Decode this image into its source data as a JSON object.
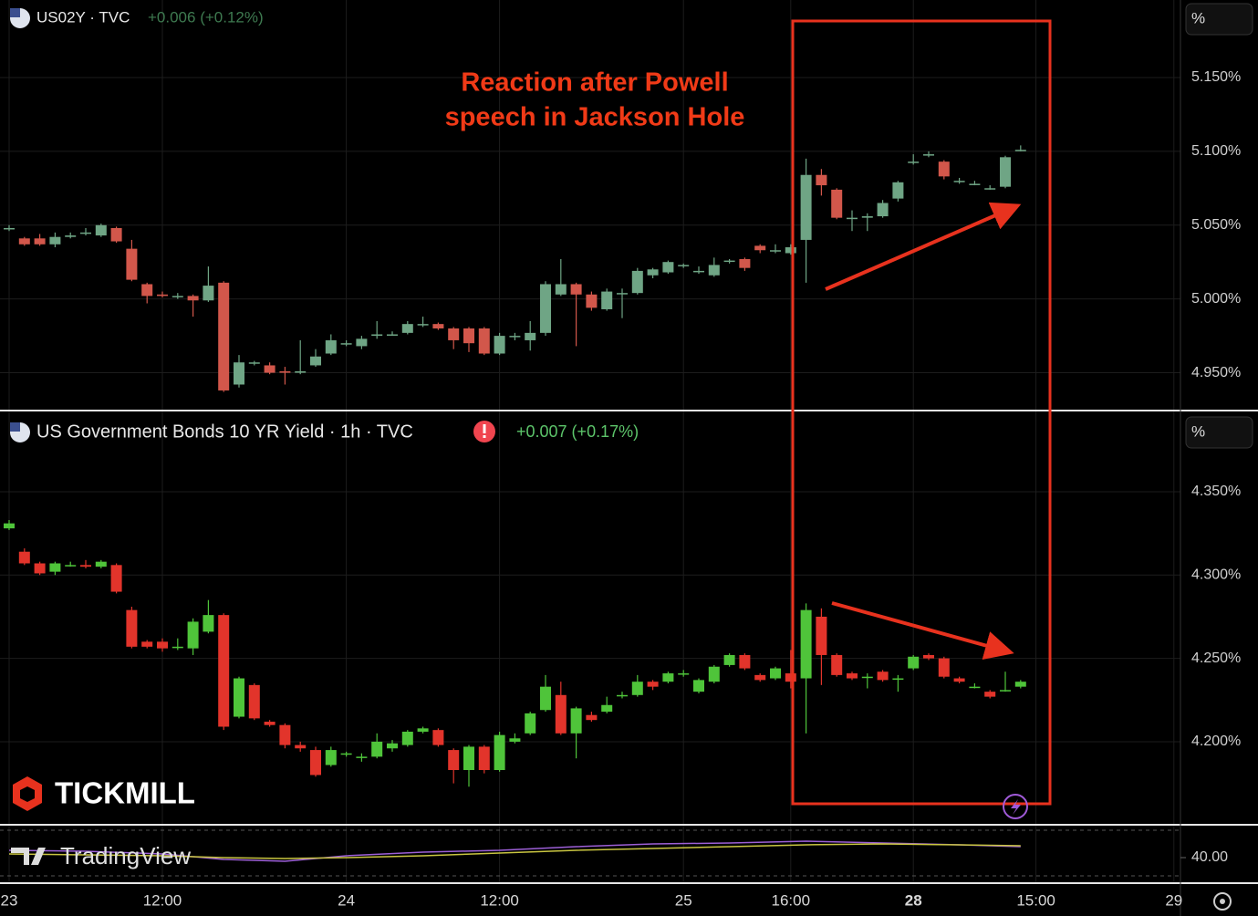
{
  "chart_data": [
    {
      "type": "candlestick",
      "title": "US02Y · TVC",
      "change": "+0.006 (+0.12%)",
      "unit": "%",
      "up_color": "#6fa585",
      "down_color": "#d2574b",
      "change_color": "#3e7a50",
      "open": [
        5.048,
        5.041,
        5.041,
        5.037,
        5.042,
        5.045,
        5.043,
        5.048,
        5.034,
        5.01,
        5.003,
        5.002,
        5.002,
        4.999,
        5.011,
        4.942,
        4.957,
        4.955,
        4.951,
        4.95,
        4.955,
        4.963,
        4.97,
        4.968,
        4.975,
        4.976,
        4.977,
        4.983,
        4.983,
        4.98,
        4.98,
        4.98,
        4.963,
        4.975,
        4.972,
        4.977,
        5.003,
        5.01,
        5.003,
        4.993,
        5.004,
        5.004,
        5.016,
        5.018,
        5.023,
        5.019,
        5.016,
        5.026,
        5.027,
        5.036,
        5.033,
        5.031,
        5.04,
        5.084,
        5.074,
        5.055,
        5.055,
        5.056,
        5.068,
        5.093,
        5.098,
        5.093,
        5.08,
        5.078,
        5.075,
        5.076,
        5.101
      ],
      "high": [
        5.05,
        5.042,
        5.044,
        5.045,
        5.045,
        5.048,
        5.051,
        5.049,
        5.04,
        5.011,
        5.005,
        5.004,
        5.003,
        5.022,
        5.012,
        4.962,
        4.958,
        4.957,
        4.954,
        4.972,
        4.966,
        4.976,
        4.972,
        4.975,
        4.985,
        4.978,
        4.985,
        4.988,
        4.984,
        4.981,
        4.981,
        4.981,
        4.977,
        4.977,
        4.985,
        5.012,
        5.027,
        5.011,
        5.005,
        5.007,
        5.007,
        5.021,
        5.021,
        5.026,
        5.024,
        5.022,
        5.028,
        5.027,
        5.028,
        5.037,
        5.037,
        5.037,
        5.095,
        5.088,
        5.075,
        5.06,
        5.058,
        5.067,
        5.08,
        5.098,
        5.1,
        5.094,
        5.082,
        5.08,
        5.077,
        5.097,
        5.104
      ],
      "low": [
        5.046,
        5.036,
        5.036,
        5.035,
        5.041,
        5.043,
        5.042,
        5.038,
        5.012,
        4.997,
        5.001,
        5.0,
        4.988,
        4.998,
        4.937,
        4.94,
        4.955,
        4.949,
        4.942,
        4.949,
        4.954,
        4.962,
        4.968,
        4.966,
        4.973,
        4.975,
        4.976,
        4.981,
        4.979,
        4.966,
        4.964,
        4.962,
        4.962,
        4.972,
        4.965,
        4.975,
        5.002,
        4.968,
        4.992,
        4.992,
        4.987,
        5.003,
        5.014,
        5.017,
        5.021,
        5.017,
        5.015,
        5.024,
        5.019,
        5.031,
        5.031,
        5.03,
        5.011,
        5.07,
        5.054,
        5.046,
        5.046,
        5.055,
        5.066,
        5.091,
        5.096,
        5.081,
        5.078,
        5.077,
        5.074,
        5.075,
        5.1
      ],
      "close": [
        5.048,
        5.037,
        5.037,
        5.042,
        5.043,
        5.045,
        5.05,
        5.039,
        5.013,
        5.002,
        5.002,
        5.002,
        4.999,
        5.009,
        4.938,
        4.957,
        4.957,
        4.95,
        4.95,
        4.951,
        4.961,
        4.972,
        4.97,
        4.973,
        4.976,
        4.976,
        4.983,
        4.983,
        4.98,
        4.972,
        4.97,
        4.963,
        4.975,
        4.975,
        4.977,
        5.01,
        5.01,
        5.003,
        4.994,
        5.005,
        5.004,
        5.019,
        5.02,
        5.025,
        5.023,
        5.019,
        5.023,
        5.026,
        5.021,
        5.033,
        5.033,
        5.035,
        5.084,
        5.077,
        5.055,
        5.055,
        5.056,
        5.065,
        5.079,
        5.093,
        5.098,
        5.083,
        5.08,
        5.078,
        5.075,
        5.096,
        5.101
      ],
      "ylim": [
        4.925,
        5.2025
      ],
      "yticks": [
        {
          "value": 4.95,
          "label": "4.950%"
        },
        {
          "value": 5.0,
          "label": "5.000%"
        },
        {
          "value": 5.05,
          "label": "5.050%"
        },
        {
          "value": 5.1,
          "label": "5.100%"
        },
        {
          "value": 5.15,
          "label": "5.150%"
        }
      ],
      "grid": true
    },
    {
      "type": "candlestick",
      "title": "US Government Bonds 10 YR Yield · 1h · TVC",
      "change": "+0.007 (+0.17%)",
      "unit": "%",
      "up_color": "#4fc43a",
      "down_color": "#e2342b",
      "change_color": "#5cc46a",
      "categories": [
        "23",
        null,
        null,
        null,
        null,
        null,
        null,
        null,
        null,
        null,
        "12:00",
        null,
        null,
        null,
        null,
        null,
        null,
        null,
        null,
        null,
        null,
        null,
        "24",
        null,
        null,
        null,
        null,
        null,
        null,
        null,
        null,
        null,
        "12:00",
        null,
        null,
        null,
        null,
        null,
        null,
        null,
        null,
        null,
        null,
        null,
        "25",
        null,
        null,
        null,
        null,
        null,
        null,
        "16:00",
        null,
        null,
        null,
        null,
        null,
        null,
        null,
        "28",
        null,
        null,
        null,
        null,
        null,
        null,
        null,
        "15:00",
        null,
        null,
        null,
        null,
        null,
        null,
        null,
        null,
        "29"
      ],
      "open": [
        4.328,
        4.314,
        4.307,
        4.302,
        4.306,
        4.306,
        4.305,
        4.306,
        4.279,
        4.26,
        4.26,
        4.257,
        4.256,
        4.266,
        4.276,
        4.215,
        4.234,
        4.212,
        4.21,
        4.198,
        4.195,
        4.186,
        4.193,
        4.191,
        4.191,
        4.196,
        4.198,
        4.206,
        4.207,
        4.195,
        4.183,
        4.197,
        4.183,
        4.2,
        4.205,
        4.219,
        4.228,
        4.205,
        4.216,
        4.218,
        4.228,
        4.228,
        4.236,
        4.236,
        4.241,
        4.23,
        4.236,
        4.246,
        4.252,
        4.24,
        4.238,
        4.241,
        4.238,
        4.275,
        4.252,
        4.241,
        4.239,
        4.242,
        4.238,
        4.244,
        4.252,
        4.25,
        4.238,
        4.233,
        4.23,
        4.231,
        4.233,
        null,
        null,
        null,
        null,
        null,
        null,
        null,
        null,
        null,
        null
      ],
      "high": [
        4.333,
        4.316,
        4.308,
        4.308,
        4.308,
        4.309,
        4.309,
        4.307,
        4.281,
        4.261,
        4.262,
        4.262,
        4.274,
        4.285,
        4.277,
        4.239,
        4.235,
        4.213,
        4.211,
        4.2,
        4.197,
        4.197,
        4.194,
        4.193,
        4.205,
        4.201,
        4.207,
        4.209,
        4.208,
        4.196,
        4.198,
        4.198,
        4.206,
        4.205,
        4.218,
        4.24,
        4.236,
        4.221,
        4.218,
        4.227,
        4.23,
        4.24,
        4.237,
        4.242,
        4.243,
        4.238,
        4.246,
        4.253,
        4.253,
        4.241,
        4.245,
        4.255,
        4.283,
        4.28,
        4.253,
        4.242,
        4.241,
        4.243,
        4.24,
        4.252,
        4.253,
        4.251,
        4.239,
        4.235,
        4.231,
        4.242,
        4.237,
        null,
        null,
        null,
        null,
        null,
        null,
        null,
        null,
        null,
        null
      ],
      "low": [
        4.327,
        4.306,
        4.3,
        4.3,
        4.305,
        4.304,
        4.304,
        4.289,
        4.256,
        4.256,
        4.254,
        4.255,
        4.252,
        4.265,
        4.207,
        4.214,
        4.213,
        4.209,
        4.196,
        4.194,
        4.179,
        4.185,
        4.191,
        4.188,
        4.19,
        4.194,
        4.197,
        4.205,
        4.197,
        4.175,
        4.173,
        4.181,
        4.182,
        4.199,
        4.204,
        4.218,
        4.204,
        4.19,
        4.212,
        4.217,
        4.226,
        4.227,
        4.231,
        4.235,
        4.239,
        4.229,
        4.235,
        4.245,
        4.243,
        4.236,
        4.237,
        4.232,
        4.205,
        4.234,
        4.239,
        4.237,
        4.232,
        4.236,
        4.23,
        4.243,
        4.249,
        4.238,
        4.235,
        4.232,
        4.226,
        4.23,
        4.232,
        null,
        null,
        null,
        null,
        null,
        null,
        null,
        null,
        null,
        null
      ],
      "close": [
        4.331,
        4.307,
        4.301,
        4.307,
        4.306,
        4.305,
        4.308,
        4.29,
        4.257,
        4.257,
        4.256,
        4.257,
        4.272,
        4.276,
        4.209,
        4.238,
        4.214,
        4.21,
        4.198,
        4.196,
        4.18,
        4.195,
        4.193,
        4.191,
        4.2,
        4.199,
        4.206,
        4.208,
        4.198,
        4.183,
        4.197,
        4.183,
        4.204,
        4.202,
        4.217,
        4.233,
        4.205,
        4.22,
        4.213,
        4.222,
        4.228,
        4.236,
        4.233,
        4.241,
        4.241,
        4.237,
        4.245,
        4.252,
        4.244,
        4.237,
        4.244,
        4.236,
        4.279,
        4.252,
        4.24,
        4.238,
        4.239,
        4.237,
        4.238,
        4.251,
        4.25,
        4.239,
        4.236,
        4.233,
        4.227,
        4.231,
        4.236,
        null,
        null,
        null,
        null,
        null,
        null,
        null,
        null,
        null,
        null
      ],
      "ylim": [
        4.1507,
        4.3976
      ],
      "yticks": [
        {
          "value": 4.2,
          "label": "4.200%"
        },
        {
          "value": 4.25,
          "label": "4.250%"
        },
        {
          "value": 4.3,
          "label": "4.300%"
        },
        {
          "value": 4.35,
          "label": "4.350%"
        }
      ],
      "grid": true
    },
    {
      "type": "line",
      "x": [
        0,
        5,
        10,
        14,
        18,
        22,
        27,
        32,
        37,
        42,
        47,
        52,
        57,
        62,
        66
      ],
      "series": [
        {
          "color": "#9c5fd6",
          "values": [
            48,
            47,
            44,
            38,
            36,
            42,
            46,
            48,
            52,
            55,
            56,
            58,
            56,
            54,
            52
          ]
        },
        {
          "color": "#c9c541",
          "values": [
            44,
            43,
            42,
            40,
            39,
            40,
            42,
            45,
            48,
            50,
            52,
            54,
            55,
            54,
            53
          ]
        }
      ],
      "ylim": [
        15,
        70
      ],
      "yticks": [
        {
          "value": 40,
          "label": "40.00"
        }
      ]
    }
  ],
  "annotation": [
    "Reaction after Powell",
    "speech in Jackson Hole"
  ],
  "watermarks": [
    "TICKMILL",
    "TradingView"
  ]
}
